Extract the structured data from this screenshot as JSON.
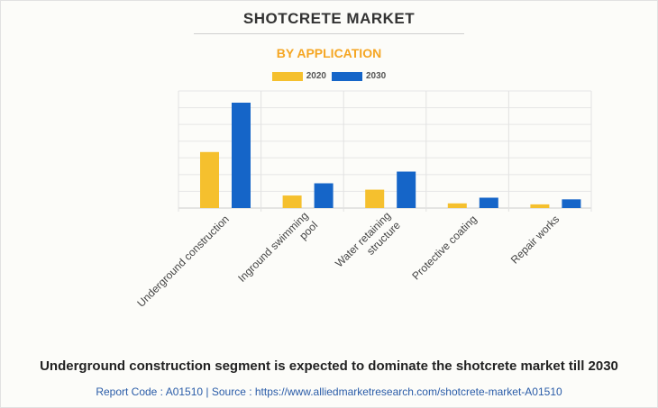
{
  "header": {
    "title": "SHOTCRETE MARKET",
    "subtitle": "BY APPLICATION"
  },
  "colors": {
    "series_2020": "#f5c02e",
    "series_2030": "#1565c8",
    "subtitle": "#f5a623"
  },
  "chart_data": {
    "type": "bar",
    "categories": [
      "Underground construction",
      "Inground swimming pool",
      "Water retaining structure",
      "Protective coating",
      "Repair works"
    ],
    "category_label_lines": [
      [
        "Underground construction"
      ],
      [
        "Inground swimming",
        "pool"
      ],
      [
        "Water retaining",
        "structure"
      ],
      [
        "Protective coating"
      ],
      [
        "Repair works"
      ]
    ],
    "series": [
      {
        "name": "2020",
        "values": [
          3.35,
          0.75,
          1.1,
          0.28,
          0.22
        ]
      },
      {
        "name": "2030",
        "values": [
          6.3,
          1.48,
          2.18,
          0.62,
          0.52
        ]
      }
    ],
    "ylim": [
      0,
      7
    ],
    "grid": true,
    "legend": "top-center",
    "xlabel": "",
    "ylabel": ""
  },
  "footer": {
    "headline": "Underground construction segment is expected to dominate the shotcrete market till 2030",
    "source": "Report Code : A01510  |  Source : https://www.alliedmarketresearch.com/shotcrete-market-A01510"
  }
}
